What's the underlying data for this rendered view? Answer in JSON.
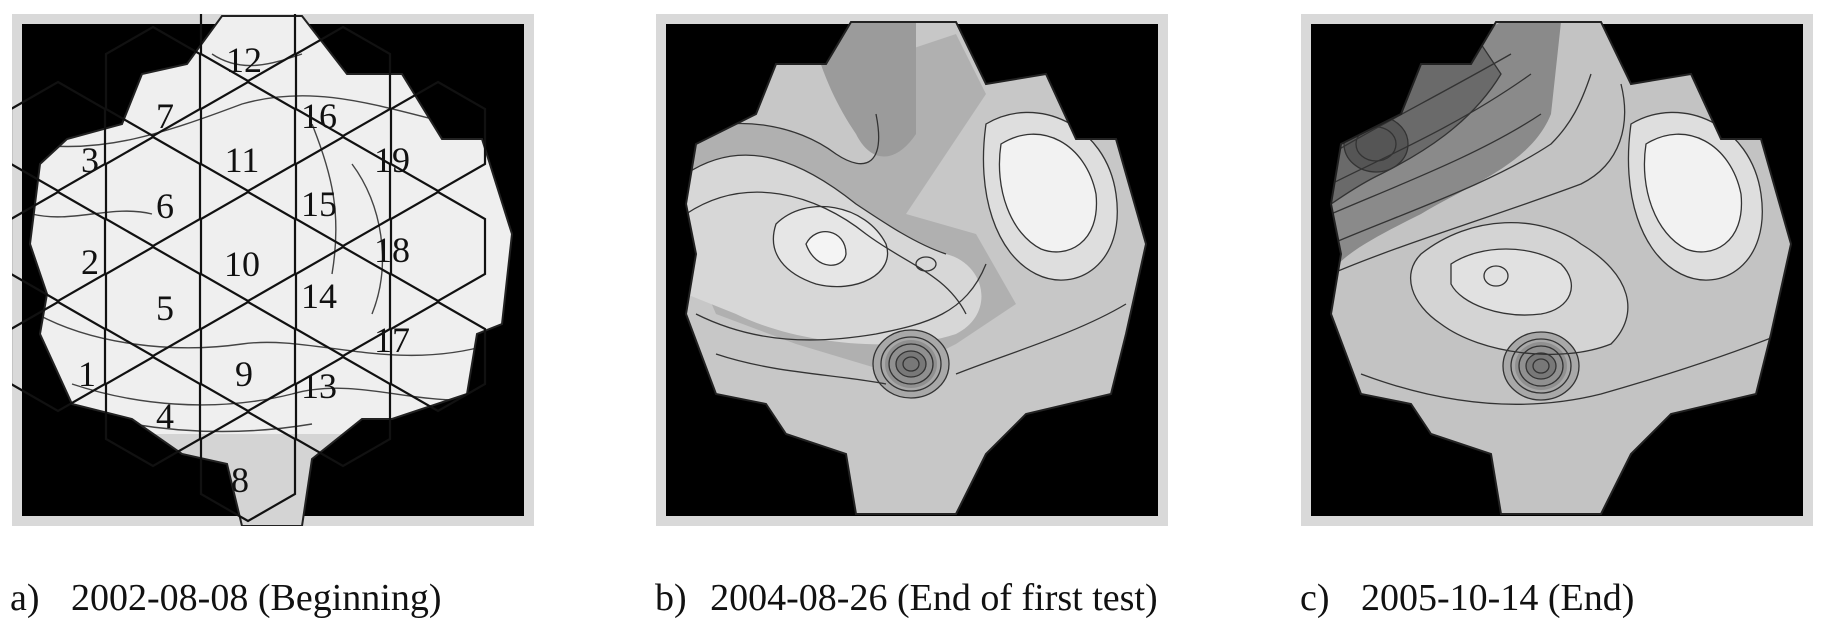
{
  "panels": [
    {
      "id": "a",
      "caption_letter": "a)",
      "caption_text": "2002-08-08 (Beginning)",
      "segment_labels": [
        "1",
        "2",
        "3",
        "4",
        "5",
        "6",
        "7",
        "8",
        "9",
        "10",
        "11",
        "12",
        "13",
        "14",
        "15",
        "16",
        "17",
        "18",
        "19"
      ]
    },
    {
      "id": "b",
      "caption_letter": "b)",
      "caption_text": "2004-08-26 (End of first test)"
    },
    {
      "id": "c",
      "caption_letter": "c)",
      "caption_text": "2005-10-14 (End)"
    }
  ],
  "colors": {
    "background": "#000000",
    "frame": "#cfcfcf",
    "contour_line": "#333333",
    "segment_outline": "#111111"
  }
}
